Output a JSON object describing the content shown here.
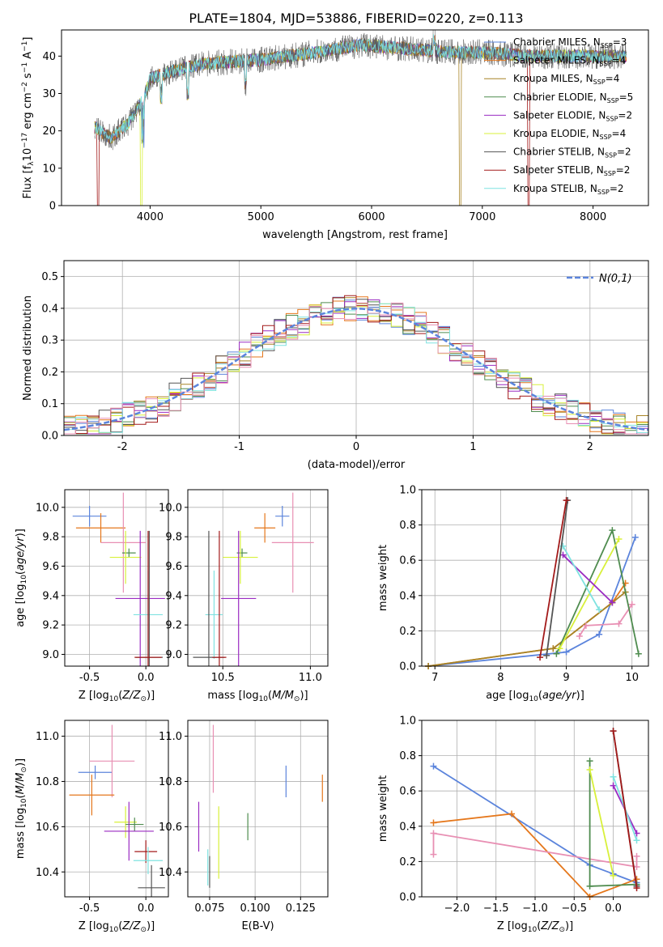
{
  "figure_title": "PLATE=1804, MJD=53886, FIBERID=0220, z=0.113",
  "colors": {
    "Chabrier MILES": "#5b84dc",
    "Salpeter MILES": "#e5771b",
    "Kroupa MILES": "#a88426",
    "Chabrier ELODIE": "#4f8c4f",
    "Salpeter ELODIE": "#9a2bc2",
    "Kroupa ELODIE": "#d8f03a",
    "Chabrier STELIB": "#555555",
    "Salpeter STELIB": "#a31a1a",
    "Kroupa STELIB": "#7fe2e0",
    "pink": "#e88fb3",
    "normal_curve": "#5b84dc",
    "grid": "#b0b0b0"
  },
  "chart_data": [
    {
      "id": "spectrum",
      "type": "line",
      "xlabel": "wavelength [Angstrom, rest frame]",
      "ylabel": "Flux [f_λ 10^-17 erg cm^-2 s^-1 A^-1]",
      "xlim": [
        3200,
        8500
      ],
      "ylim": [
        0,
        47
      ],
      "xticks": [
        4000,
        5000,
        6000,
        7000,
        8000
      ],
      "yticks": [
        0,
        10,
        20,
        30,
        40
      ],
      "legend_position": "right",
      "legend": [
        {
          "model": "Chabrier MILES",
          "nssp": "3"
        },
        {
          "model": "Salpeter MILES",
          "nssp": "4"
        },
        {
          "model": "Kroupa MILES",
          "nssp": "4"
        },
        {
          "model": "Chabrier ELODIE",
          "nssp": "5"
        },
        {
          "model": "Salpeter ELODIE",
          "nssp": "2"
        },
        {
          "model": "Kroupa ELODIE",
          "nssp": "4"
        },
        {
          "model": "Chabrier STELIB",
          "nssp": "2"
        },
        {
          "model": "Salpeter STELIB",
          "nssp": "2"
        },
        {
          "model": "Kroupa STELIB",
          "nssp": "2"
        }
      ],
      "continuum": [
        [
          3500,
          21
        ],
        [
          3650,
          18
        ],
        [
          3800,
          22
        ],
        [
          3950,
          29
        ],
        [
          4000,
          34
        ],
        [
          4200,
          36
        ],
        [
          4500,
          38
        ],
        [
          5000,
          39
        ],
        [
          5500,
          41
        ],
        [
          5900,
          43
        ],
        [
          6300,
          42
        ],
        [
          6700,
          41
        ],
        [
          7000,
          41
        ],
        [
          7500,
          40
        ],
        [
          8000,
          40
        ],
        [
          8300,
          40
        ]
      ],
      "gaps": [
        {
          "model": "Salpeter STELIB",
          "x": 3530
        },
        {
          "model": "Kroupa ELODIE",
          "x": 3920
        },
        {
          "model": "Kroupa MILES",
          "x": 6800
        },
        {
          "model": "Salpeter STELIB",
          "x": 7420
        }
      ]
    },
    {
      "id": "residuals",
      "type": "histogram",
      "xlabel": "(data-model)/error",
      "ylabel": "Normed distribution",
      "xlim": [
        -2.5,
        2.5
      ],
      "ylim": [
        0,
        0.55
      ],
      "xticks": [
        -2,
        -1,
        0,
        1,
        2
      ],
      "yticks": [
        0.0,
        0.1,
        0.2,
        0.3,
        0.4,
        0.5
      ],
      "bin_width": 0.1,
      "legend_position": "top-right",
      "legend": "N(0,1)"
    },
    {
      "id": "age_vs_Z",
      "type": "scatter",
      "xlabel": "Z [log10(Z/Z⊙)]",
      "ylabel": "age [log10(age/yr)]",
      "xlim": [
        -0.72,
        0.2
      ],
      "ylim": [
        8.92,
        10.12
      ],
      "xticks": [
        -0.5,
        0.0
      ],
      "yticks": [
        9.0,
        9.2,
        9.4,
        9.6,
        9.8,
        10.0
      ],
      "points": [
        {
          "c": "Chabrier MILES",
          "x": -0.5,
          "xe": 0.15,
          "y": 9.94,
          "ye": 0.07
        },
        {
          "c": "Salpeter MILES",
          "x": -0.4,
          "xe": 0.22,
          "y": 9.86,
          "ye": 0.1
        },
        {
          "c": "pink",
          "x": -0.2,
          "xe": 0.2,
          "y": 9.76,
          "ye": 0.34
        },
        {
          "c": "Chabrier ELODIE",
          "x": -0.15,
          "xe": 0.06,
          "y": 9.69,
          "ye": 0.03
        },
        {
          "c": "Kroupa ELODIE",
          "x": -0.18,
          "xe": 0.14,
          "y": 9.66,
          "ye": 0.18
        },
        {
          "c": "Salpeter ELODIE",
          "x": -0.05,
          "xe": 0.22,
          "y": 9.38,
          "ye": 0.46
        },
        {
          "c": "Kroupa STELIB",
          "x": 0.02,
          "xe": 0.13,
          "y": 9.27,
          "ye": 0.3
        },
        {
          "c": "Chabrier STELIB",
          "x": 0.03,
          "xe": 0.12,
          "y": 8.98,
          "ye": 0.86
        },
        {
          "c": "Salpeter STELIB",
          "x": 0.02,
          "xe": 0.12,
          "y": 8.98,
          "ye": 0.86
        }
      ]
    },
    {
      "id": "age_vs_mass",
      "type": "scatter",
      "xlabel": "mass [log10(M/M⊙)]",
      "xlim": [
        10.3,
        11.1
      ],
      "ylim": [
        8.92,
        10.12
      ],
      "xticks": [
        10.5,
        11.0
      ],
      "yticks": [
        9.0,
        9.2,
        9.4,
        9.6,
        9.8,
        10.0
      ],
      "points": [
        {
          "c": "Chabrier MILES",
          "x": 10.84,
          "xe": 0.04,
          "y": 9.94,
          "ye": 0.07
        },
        {
          "c": "Salpeter MILES",
          "x": 10.74,
          "xe": 0.06,
          "y": 9.86,
          "ye": 0.1
        },
        {
          "c": "pink",
          "x": 10.9,
          "xe": 0.12,
          "y": 9.76,
          "ye": 0.34
        },
        {
          "c": "Chabrier ELODIE",
          "x": 10.61,
          "xe": 0.03,
          "y": 9.69,
          "ye": 0.03
        },
        {
          "c": "Kroupa ELODIE",
          "x": 10.6,
          "xe": 0.1,
          "y": 9.66,
          "ye": 0.18
        },
        {
          "c": "Salpeter ELODIE",
          "x": 10.59,
          "xe": 0.1,
          "y": 9.38,
          "ye": 0.46
        },
        {
          "c": "Kroupa STELIB",
          "x": 10.45,
          "xe": 0.05,
          "y": 9.27,
          "ye": 0.3
        },
        {
          "c": "Chabrier STELIB",
          "x": 10.42,
          "xe": 0.09,
          "y": 8.98,
          "ye": 0.86
        },
        {
          "c": "Salpeter STELIB",
          "x": 10.48,
          "xe": 0.04,
          "y": 8.98,
          "ye": 0.86
        }
      ]
    },
    {
      "id": "weight_vs_age",
      "type": "line",
      "xlabel": "age [log10(age/yr)]",
      "ylabel": "mass weight",
      "xlim": [
        6.8,
        10.25
      ],
      "ylim": [
        0,
        1.0
      ],
      "xticks": [
        7,
        8,
        9,
        10
      ],
      "yticks": [
        0.0,
        0.2,
        0.4,
        0.6,
        0.8,
        1.0
      ],
      "series": [
        {
          "c": "Chabrier MILES",
          "points": [
            [
              6.9,
              0.0
            ],
            [
              9.0,
              0.08
            ],
            [
              9.5,
              0.18
            ],
            [
              10.05,
              0.73
            ]
          ]
        },
        {
          "c": "Salpeter MILES",
          "points": [
            [
              6.9,
              0.0
            ],
            [
              8.8,
              0.1
            ],
            [
              9.7,
              0.36
            ],
            [
              9.9,
              0.47
            ]
          ]
        },
        {
          "c": "Kroupa MILES",
          "points": [
            [
              6.9,
              0.0
            ],
            [
              8.8,
              0.1
            ],
            [
              9.7,
              0.36
            ],
            [
              9.9,
              0.42
            ]
          ]
        },
        {
          "c": "pink",
          "points": [
            [
              9.2,
              0.17
            ],
            [
              9.3,
              0.23
            ],
            [
              9.8,
              0.24
            ],
            [
              10.0,
              0.35
            ]
          ]
        },
        {
          "c": "Chabrier ELODIE",
          "points": [
            [
              8.85,
              0.07
            ],
            [
              9.7,
              0.77
            ],
            [
              10.1,
              0.07
            ]
          ]
        },
        {
          "c": "Kroupa ELODIE",
          "points": [
            [
              8.9,
              0.1
            ],
            [
              9.8,
              0.72
            ]
          ]
        },
        {
          "c": "Salpeter ELODIE",
          "points": [
            [
              8.95,
              0.63
            ],
            [
              9.7,
              0.36
            ]
          ]
        },
        {
          "c": "Kroupa STELIB",
          "points": [
            [
              8.95,
              0.68
            ],
            [
              9.5,
              0.32
            ]
          ]
        },
        {
          "c": "Chabrier STELIB",
          "points": [
            [
              8.7,
              0.06
            ],
            [
              9.02,
              0.94
            ]
          ]
        },
        {
          "c": "Salpeter STELIB",
          "points": [
            [
              8.6,
              0.05
            ],
            [
              9.0,
              0.94
            ]
          ]
        }
      ]
    },
    {
      "id": "mass_vs_Z",
      "type": "scatter",
      "xlabel": "Z [log10(Z/Z⊙)]",
      "ylabel": "mass [log10(M/M⊙)]",
      "xlim": [
        -0.72,
        0.2
      ],
      "ylim": [
        10.29,
        11.07
      ],
      "xticks": [
        -0.5,
        0.0
      ],
      "yticks": [
        10.4,
        10.6,
        10.8,
        11.0
      ],
      "points": [
        {
          "c": "Chabrier MILES",
          "x": -0.45,
          "xe": 0.15,
          "y": 10.84,
          "ye": 0.03
        },
        {
          "c": "pink",
          "x": -0.3,
          "xe": 0.2,
          "y": 10.89,
          "ye": 0.16
        },
        {
          "c": "Salpeter MILES",
          "x": -0.48,
          "xe": 0.2,
          "y": 10.74,
          "ye": 0.09
        },
        {
          "c": "Kroupa ELODIE",
          "x": -0.18,
          "xe": 0.1,
          "y": 10.62,
          "ye": 0.07
        },
        {
          "c": "Chabrier ELODIE",
          "x": -0.1,
          "xe": 0.08,
          "y": 10.61,
          "ye": 0.03
        },
        {
          "c": "Salpeter ELODIE",
          "x": -0.15,
          "xe": 0.22,
          "y": 10.58,
          "ye": 0.13
        },
        {
          "c": "Salpeter STELIB",
          "x": 0.0,
          "xe": 0.1,
          "y": 10.49,
          "ye": 0.05
        },
        {
          "c": "Kroupa STELIB",
          "x": 0.02,
          "xe": 0.13,
          "y": 10.45,
          "ye": 0.06
        },
        {
          "c": "Chabrier STELIB",
          "x": 0.05,
          "xe": 0.12,
          "y": 10.33,
          "ye": 0.1
        }
      ]
    },
    {
      "id": "mass_vs_ebv",
      "type": "scatter",
      "xlabel": "E(B-V)",
      "xlim": [
        0.063,
        0.14
      ],
      "ylim": [
        10.29,
        11.07
      ],
      "xticks": [
        0.075,
        0.1,
        0.125
      ],
      "xticklabels": [
        "0.075",
        "0.100",
        "0.125"
      ],
      "yticks": [
        10.4,
        10.6,
        10.8,
        11.0
      ],
      "points": [
        {
          "c": "Salpeter MILES",
          "x": 0.137,
          "y": 10.77,
          "ye": 0.06
        },
        {
          "c": "Chabrier MILES",
          "x": 0.117,
          "y": 10.8,
          "ye": 0.07
        },
        {
          "c": "pink",
          "x": 0.077,
          "y": 10.9,
          "ye": 0.15
        },
        {
          "c": "Chabrier ELODIE",
          "x": 0.096,
          "y": 10.6,
          "ye": 0.06
        },
        {
          "c": "Kroupa ELODIE",
          "x": 0.08,
          "y": 10.53,
          "ye": 0.16
        },
        {
          "c": "Salpeter ELODIE",
          "x": 0.069,
          "y": 10.6,
          "ye": 0.11
        },
        {
          "c": "Kroupa STELIB",
          "x": 0.074,
          "y": 10.42,
          "ye": 0.08
        },
        {
          "c": "Chabrier STELIB",
          "x": 0.075,
          "y": 10.4,
          "ye": 0.07
        }
      ]
    },
    {
      "id": "weight_vs_Z",
      "type": "line",
      "xlabel": "Z [log10(Z/Z⊙)]",
      "ylabel": "mass weight",
      "xlim": [
        -2.45,
        0.45
      ],
      "ylim": [
        0,
        1.0
      ],
      "xticks": [
        -2.0,
        -1.5,
        -1.0,
        -0.5,
        0.0
      ],
      "yticks": [
        0.0,
        0.2,
        0.4,
        0.6,
        0.8,
        1.0
      ],
      "series": [
        {
          "c": "Chabrier MILES",
          "points": [
            [
              -2.3,
              0.74
            ],
            [
              -0.3,
              0.18
            ],
            [
              0.0,
              0.13
            ],
            [
              0.3,
              0.08
            ]
          ]
        },
        {
          "c": "Salpeter MILES",
          "points": [
            [
              -2.3,
              0.42
            ],
            [
              -1.3,
              0.47
            ],
            [
              -0.3,
              0.0
            ],
            [
              0.3,
              0.1
            ]
          ]
        },
        {
          "c": "pink",
          "points": [
            [
              -2.3,
              0.24
            ],
            [
              -2.3,
              0.36
            ],
            [
              0.3,
              0.17
            ],
            [
              0.3,
              0.23
            ]
          ]
        },
        {
          "c": "Chabrier ELODIE",
          "points": [
            [
              -0.3,
              0.77
            ],
            [
              -0.3,
              0.06
            ],
            [
              0.3,
              0.07
            ]
          ]
        },
        {
          "c": "Kroupa ELODIE",
          "points": [
            [
              -0.3,
              0.72
            ],
            [
              0.0,
              0.12
            ]
          ]
        },
        {
          "c": "Salpeter ELODIE",
          "points": [
            [
              0.0,
              0.63
            ],
            [
              0.3,
              0.36
            ]
          ]
        },
        {
          "c": "Kroupa STELIB",
          "points": [
            [
              0.0,
              0.68
            ],
            [
              0.3,
              0.32
            ]
          ]
        },
        {
          "c": "Chabrier STELIB",
          "points": [
            [
              0.0,
              0.94
            ],
            [
              0.3,
              0.06
            ]
          ]
        },
        {
          "c": "Salpeter STELIB",
          "points": [
            [
              0.0,
              0.94
            ],
            [
              0.3,
              0.05
            ]
          ]
        }
      ]
    }
  ]
}
